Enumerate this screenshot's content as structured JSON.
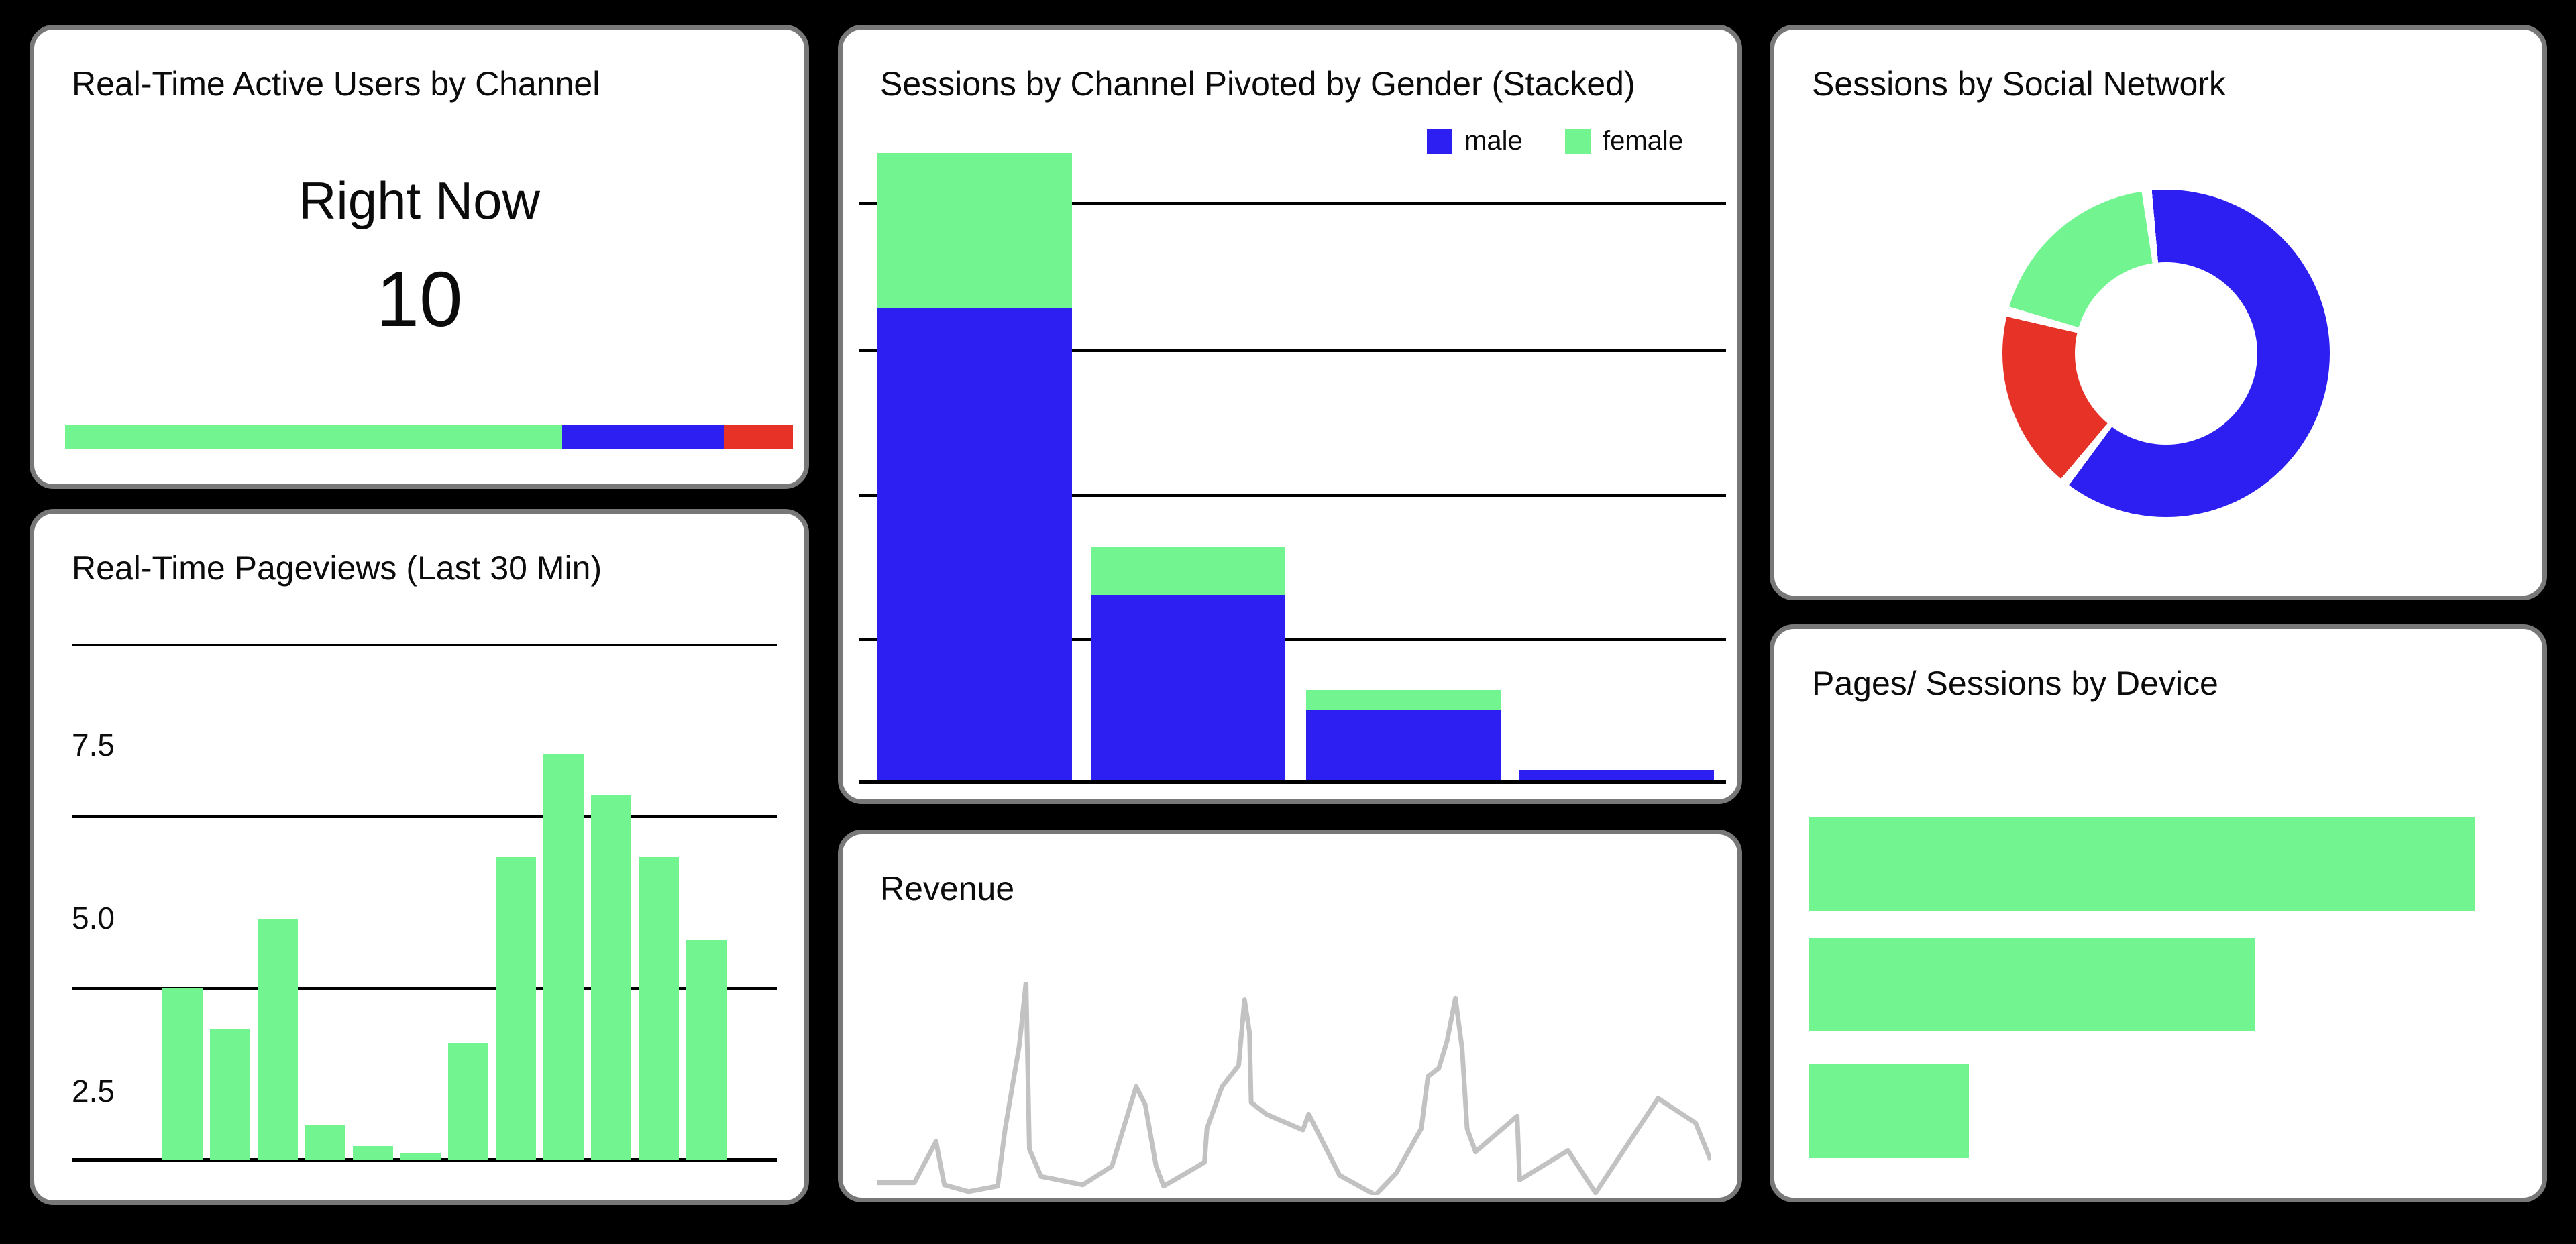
{
  "app": {
    "background": "#000000",
    "card_border": "#787878",
    "card_background": "#ffffff"
  },
  "colors": {
    "green": "#72F591",
    "blue": "#2D1FF1",
    "red": "#E73227",
    "line_gray": "#C2C2C2",
    "grid_black": "#000000",
    "text": "#0b0b0b"
  },
  "cards": {
    "realtime_users": {
      "title": "Real-Time Active Users by Channel",
      "subtitle": "Right Now",
      "value": "10"
    },
    "pageviews": {
      "title": "Real-Time Pageviews (Last 30 Min)",
      "y_ticks": [
        "7.5",
        "5.0",
        "2.5"
      ]
    },
    "channel_gender": {
      "title": "Sessions by Channel Pivoted by Gender (Stacked)",
      "legend": [
        {
          "label": "male",
          "color": "blue"
        },
        {
          "label": "female",
          "color": "green"
        }
      ]
    },
    "revenue": {
      "title": "Revenue"
    },
    "social": {
      "title": "Sessions by Social Network"
    },
    "devices": {
      "title": "Pages/ Sessions by Device"
    }
  },
  "chart_data": [
    {
      "id": "realtime_users_by_channel",
      "type": "bar",
      "orientation": "horizontal-stacked",
      "title": "Real-Time Active Users by Channel",
      "big_number": 10,
      "segments": [
        {
          "color": "green",
          "pct": 68.3
        },
        {
          "color": "blue",
          "pct": 22.3
        },
        {
          "color": "red",
          "pct": 9.4
        }
      ]
    },
    {
      "id": "realtime_pageviews",
      "type": "bar",
      "title": "Real-Time Pageviews (Last 30 Min)",
      "categories_visible": false,
      "values": [
        2.5,
        1.9,
        3.5,
        0.5,
        0.2,
        0.1,
        1.7,
        4.4,
        5.9,
        5.3,
        4.4,
        3.2
      ],
      "ylabel": "",
      "yticks": [
        2.5,
        5.0,
        7.5
      ],
      "ylim": [
        0,
        7.5
      ],
      "bar_color": "green",
      "grid": true
    },
    {
      "id": "sessions_by_channel_gender",
      "type": "bar",
      "stacked": true,
      "title": "Sessions by Channel Pivoted by Gender (Stacked)",
      "categories_visible": false,
      "series": [
        {
          "name": "male",
          "color": "blue",
          "values": [
            326,
            128,
            48,
            7
          ]
        },
        {
          "name": "female",
          "color": "green",
          "values": [
            107,
            33,
            14,
            0
          ]
        }
      ],
      "ylim": [
        0,
        500
      ],
      "gridline_step": 100,
      "legend_position": "top-right",
      "grid": true
    },
    {
      "id": "revenue",
      "type": "line",
      "title": "Revenue",
      "line_color": "line_gray",
      "axes_visible": false,
      "points_note": "x 0-100 left-right, y 0-100 bottom-top of plot box",
      "points": [
        [
          0,
          5.8
        ],
        [
          4.5,
          5.8
        ],
        [
          7.1,
          25.1
        ],
        [
          8.1,
          4.8
        ],
        [
          11.0,
          1.6
        ],
        [
          14.5,
          4.2
        ],
        [
          15.4,
          31.2
        ],
        [
          17.1,
          70.4
        ],
        [
          17.9,
          100
        ],
        [
          18.3,
          21.5
        ],
        [
          19.7,
          8.7
        ],
        [
          24.7,
          4.8
        ],
        [
          28.2,
          13.5
        ],
        [
          31.1,
          50.8
        ],
        [
          32.2,
          42.4
        ],
        [
          33.5,
          13.5
        ],
        [
          34.4,
          4.2
        ],
        [
          37.8,
          11.9
        ],
        [
          39.3,
          15.4
        ],
        [
          39.6,
          31.2
        ],
        [
          41.4,
          50.8
        ],
        [
          43.4,
          60.8
        ],
        [
          44.1,
          91.6
        ],
        [
          44.7,
          76.2
        ],
        [
          44.9,
          43.4
        ],
        [
          46.7,
          37.9
        ],
        [
          51.1,
          30.5
        ],
        [
          51.8,
          37.9
        ],
        [
          55.5,
          9.3
        ],
        [
          59.8,
          0
        ],
        [
          62.3,
          10.3
        ],
        [
          65.3,
          31.2
        ],
        [
          66.1,
          55.6
        ],
        [
          67.4,
          59.5
        ],
        [
          68.4,
          72.3
        ],
        [
          69.4,
          92.3
        ],
        [
          70.2,
          68.5
        ],
        [
          70.8,
          31.2
        ],
        [
          71.8,
          20.3
        ],
        [
          76.8,
          37.0
        ],
        [
          77.1,
          7.1
        ],
        [
          82.9,
          20.9
        ],
        [
          86.2,
          1.0
        ],
        [
          93.7,
          45.3
        ],
        [
          98.2,
          33.8
        ],
        [
          100,
          16.4
        ]
      ]
    },
    {
      "id": "sessions_by_social_network",
      "type": "pie",
      "donut": true,
      "title": "Sessions by Social Network",
      "labels_visible": false,
      "start_angle_deg": -5,
      "clockwise": true,
      "gap_pct": 1,
      "slices": [
        {
          "color": "blue",
          "pct": 61.5
        },
        {
          "color": "red",
          "pct": 17.5
        },
        {
          "color": "green",
          "pct": 18
        }
      ]
    },
    {
      "id": "pages_per_session_by_device",
      "type": "bar",
      "orientation": "horizontal",
      "title": "Pages/ Sessions by Device",
      "categories_visible": false,
      "values_pct": [
        100,
        67,
        24
      ],
      "bar_color": "green"
    }
  ]
}
